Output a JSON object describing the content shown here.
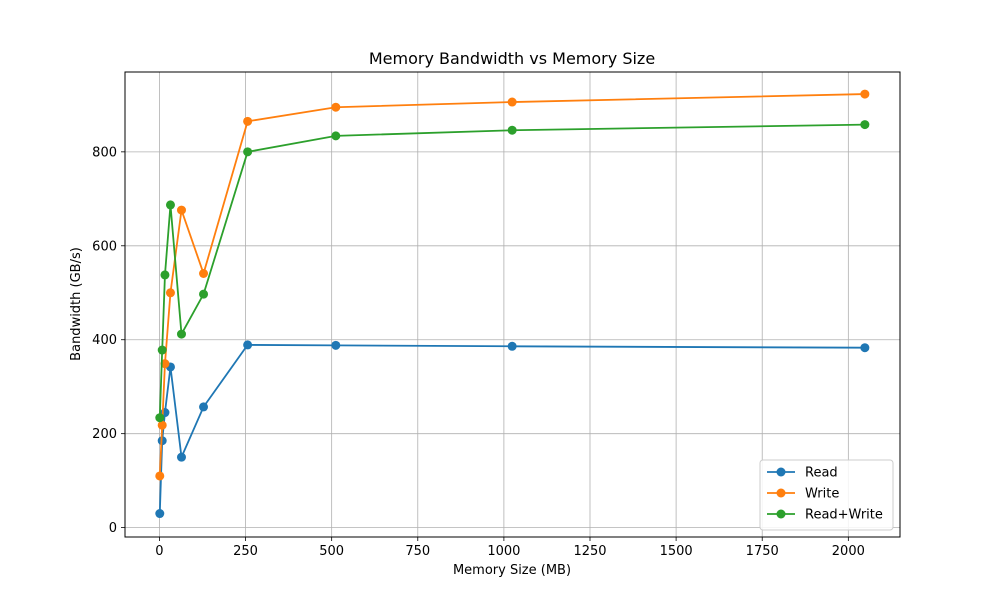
{
  "chart_data": {
    "type": "line",
    "title": "Memory Bandwidth vs Memory Size",
    "xlabel": "Memory Size (MB)",
    "ylabel": "Bandwidth (GB/s)",
    "xlim": [
      -100,
      2150
    ],
    "ylim": [
      -20,
      970
    ],
    "xticks": [
      0,
      250,
      500,
      750,
      1000,
      1250,
      1500,
      1750,
      2000
    ],
    "yticks": [
      0,
      200,
      400,
      600,
      800
    ],
    "grid": true,
    "legend_position": "bottom-right",
    "x": [
      1,
      8,
      16,
      32,
      64,
      128,
      256,
      512,
      1024,
      2048
    ],
    "series": [
      {
        "name": "Read",
        "color": "#1f77b4",
        "values": [
          30,
          185,
          245,
          342,
          150,
          257,
          389,
          388,
          386,
          383
        ]
      },
      {
        "name": "Write",
        "color": "#ff7f0e",
        "values": [
          110,
          218,
          349,
          500,
          676,
          541,
          865,
          895,
          906,
          923
        ]
      },
      {
        "name": "Read+Write",
        "color": "#2ca02c",
        "values": [
          234,
          378,
          538,
          687,
          412,
          497,
          800,
          834,
          846,
          858
        ]
      }
    ]
  }
}
